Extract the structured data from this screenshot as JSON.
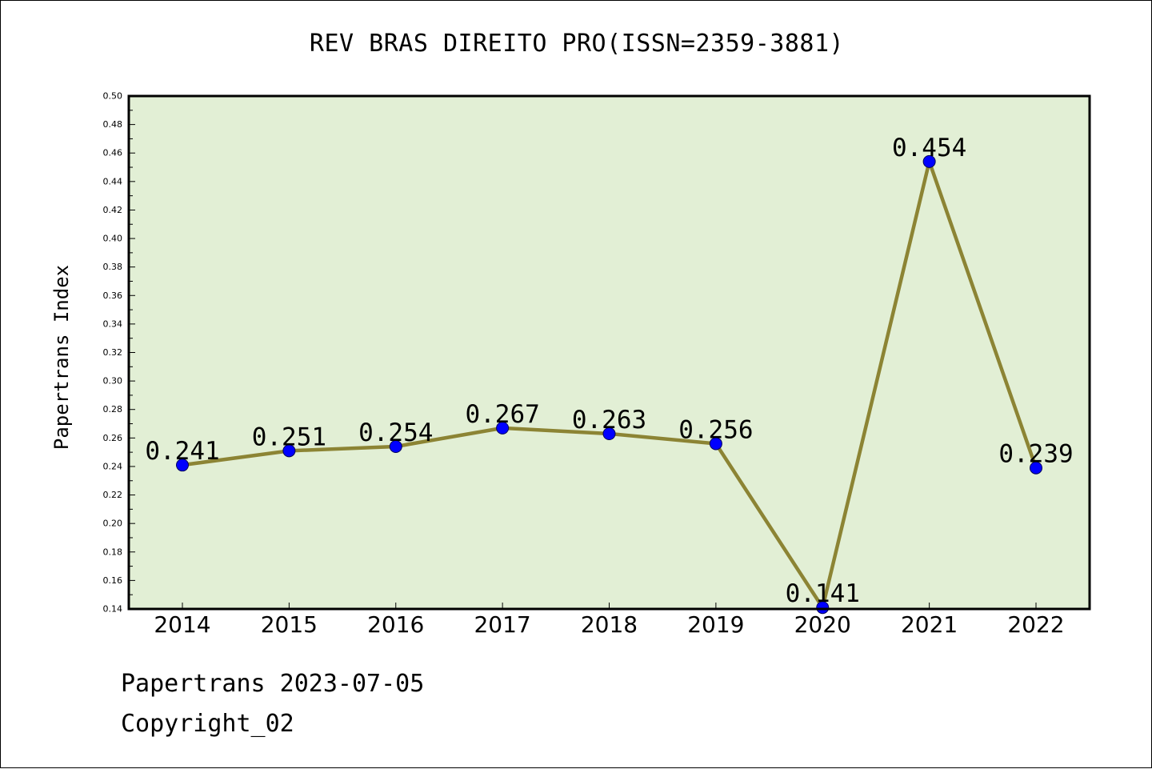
{
  "chart_data": {
    "type": "line",
    "title": "REV BRAS DIREITO PRO(ISSN=2359-3881)",
    "xlabel": "",
    "ylabel": "Papertrans Index",
    "categories": [
      "2014",
      "2015",
      "2016",
      "2017",
      "2018",
      "2019",
      "2020",
      "2021",
      "2022"
    ],
    "series": [
      {
        "values": [
          0.241,
          0.251,
          0.254,
          0.267,
          0.263,
          0.256,
          0.141,
          0.454,
          0.239
        ],
        "value_labels": [
          "0.241",
          "0.251",
          "0.254",
          "0.267",
          "0.263",
          "0.256",
          "0.141",
          "0.454",
          "0.239"
        ]
      }
    ],
    "ylim": [
      0.14,
      0.5
    ],
    "yticks": [
      "0.14",
      "0.16",
      "0.18",
      "0.20",
      "0.22",
      "0.24",
      "0.26",
      "0.28",
      "0.30",
      "0.32",
      "0.34",
      "0.36",
      "0.38",
      "0.40",
      "0.42",
      "0.44",
      "0.46",
      "0.48",
      "0.50"
    ],
    "grid": false,
    "legend": "none",
    "colors": {
      "plot_background": "#e2efd5",
      "line": "#8c8434",
      "marker": "#0000ff",
      "frame": "#000000"
    }
  },
  "footer": {
    "source_date": "Papertrans 2023-07-05",
    "copyright": "Copyright_02"
  }
}
